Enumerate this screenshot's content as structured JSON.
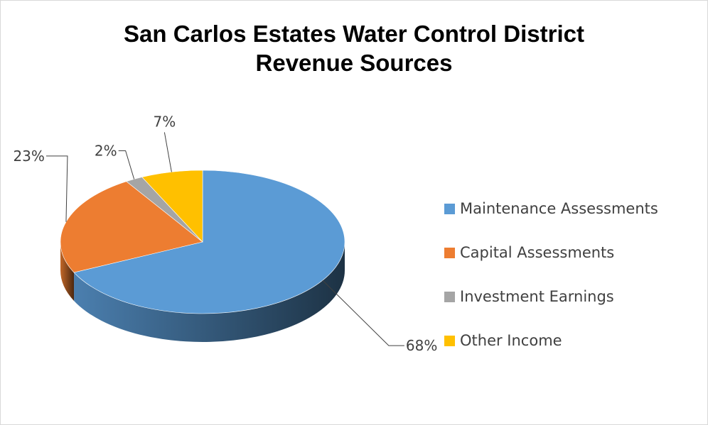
{
  "chart_data": {
    "type": "pie",
    "title": "San Carlos Estates Water Control District",
    "subtitle": "Revenue Sources",
    "categories": [
      "Maintenance Assessments",
      "Capital Assessments",
      "Investment Earnings",
      "Other Income"
    ],
    "values": [
      68,
      23,
      2,
      7
    ],
    "data_labels": [
      "68%",
      "23%",
      "2%",
      "7%"
    ],
    "colors": [
      "#5b9bd5",
      "#ed7d31",
      "#a5a5a5",
      "#ffc000"
    ],
    "legend_position": "right",
    "style": "3d-pie"
  }
}
